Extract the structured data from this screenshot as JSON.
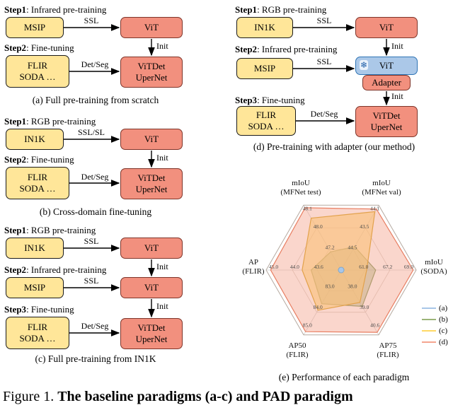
{
  "figure_caption": {
    "prefix": "Figure 1.",
    "title": "The baseline paradigms (a-c) and PAD paradigm"
  },
  "panel_a": {
    "step1_bold": "Step1",
    "step1_rest": ": Infrared pre-training",
    "step2_bold": "Step2",
    "step2_rest": ": Fine-tuning",
    "msip": "MSIP",
    "vit": "ViT",
    "data_line1": "FLIR",
    "data_line2": "SODA …",
    "head_line1": "ViTDet",
    "head_line2": "UperNet",
    "ssl": "SSL",
    "detseg": "Det/Seg",
    "init": "Init",
    "caption": "(a) Full pre-training from scratch"
  },
  "panel_b": {
    "step1_bold": "Step1",
    "step1_rest": ": RGB pre-training",
    "step2_bold": "Step2",
    "step2_rest": ": Fine-tuning",
    "in1k": "IN1K",
    "vit": "ViT",
    "data_line1": "FLIR",
    "data_line2": "SODA …",
    "head_line1": "ViTDet",
    "head_line2": "UperNet",
    "ssl": "SSL/SL",
    "detseg": "Det/Seg",
    "init": "Init",
    "caption": "(b) Cross-domain fine-tuning"
  },
  "panel_c": {
    "step1_bold": "Step1",
    "step1_rest": ": RGB pre-training",
    "step2_bold": "Step2",
    "step2_rest": ": Infrared pre-training",
    "step3_bold": "Step3",
    "step3_rest": ": Fine-tuning",
    "in1k": "IN1K",
    "vit1": "ViT",
    "msip": "MSIP",
    "vit2": "ViT",
    "data_line1": "FLIR",
    "data_line2": "SODA …",
    "head_line1": "ViTDet",
    "head_line2": "UperNet",
    "ssl1": "SSL",
    "ssl2": "SSL",
    "detseg": "Det/Seg",
    "init1": "Init",
    "init2": "Init",
    "caption": "(c) Full pre-training from IN1K"
  },
  "panel_d": {
    "step1_bold": "Step1",
    "step1_rest": ": RGB pre-training",
    "step2_bold": "Step2",
    "step2_rest": ": Infrared pre-training",
    "step3_bold": "Step3",
    "step3_rest": ": Fine-tuning",
    "in1k": "IN1K",
    "vit": "ViT",
    "msip": "MSIP",
    "frozen_vit": "ViT",
    "snowflake": "❄",
    "adapter": "Adapter",
    "data_line1": "FLIR",
    "data_line2": "SODA …",
    "head_line1": "ViTDet",
    "head_line2": "UperNet",
    "ssl1": "SSL",
    "ssl2": "SSL",
    "detseg": "Det/Seg",
    "init1": "Init",
    "init2": "Init",
    "caption": "(d) Pre-training with adapter (our method)"
  },
  "panel_e": {
    "caption": "(e) Performance of each paradigm"
  },
  "chart_data": {
    "type": "radar",
    "title": "Performance of each paradigm",
    "grid": true,
    "rings": [
      0.32,
      0.65,
      1.0
    ],
    "axes": [
      {
        "label": [
          "mIoU",
          "(MFNet test)"
        ],
        "ticks": [
          {
            "value": "47.2",
            "f": 0.3
          },
          {
            "value": "48.0",
            "f": 0.62
          },
          {
            "value": "48.1",
            "f": 0.9
          }
        ]
      },
      {
        "label": [
          "mIoU",
          "(MFNet val)"
        ],
        "ticks": [
          {
            "value": "44.5",
            "f": 0.3
          },
          {
            "value": "43.5",
            "f": 0.62
          },
          {
            "value": "44.1",
            "f": 0.9
          }
        ]
      },
      {
        "label": [
          "mIoU",
          "(SODA)"
        ],
        "ticks": [
          {
            "value": "61.0",
            "f": 0.3
          },
          {
            "value": "67.2",
            "f": 0.62
          },
          {
            "value": "69.0",
            "f": 0.9
          }
        ]
      },
      {
        "label": [
          "AP75",
          "(FLIR)"
        ],
        "ticks": [
          {
            "value": "38.0",
            "f": 0.3
          },
          {
            "value": "39.0",
            "f": 0.62
          },
          {
            "value": "40.6",
            "f": 0.9
          }
        ]
      },
      {
        "label": [
          "AP50",
          "(FLIR)"
        ],
        "ticks": [
          {
            "value": "83.0",
            "f": 0.3
          },
          {
            "value": "84.0",
            "f": 0.62
          },
          {
            "value": "85.0",
            "f": 0.9
          }
        ]
      },
      {
        "label": [
          "AP",
          "(FLIR)"
        ],
        "ticks": [
          {
            "value": "43.6",
            "f": 0.3
          },
          {
            "value": "44.0",
            "f": 0.62
          },
          {
            "value": "45.0",
            "f": 0.9
          }
        ]
      }
    ],
    "series": [
      {
        "name": "(a)",
        "color": "#a8c6e8",
        "stroke": "#7da7cc",
        "opacity": 0.9,
        "values_f": [
          0.035,
          0.035,
          0.035,
          0.035,
          0.035,
          0.035
        ]
      },
      {
        "name": "(b)",
        "color": "#9cb478",
        "stroke": "#7a9455",
        "opacity": 0.5,
        "values_f": [
          0.28,
          0.36,
          0.46,
          0.56,
          0.52,
          0.4
        ]
      },
      {
        "name": "(c)",
        "color": "#ffd966",
        "stroke": "#d4a017",
        "opacity": 0.6,
        "values_f": [
          0.8,
          0.9,
          0.34,
          0.5,
          0.62,
          0.52
        ]
      },
      {
        "name": "(d)",
        "color": "#f5a58f",
        "stroke": "#e87d60",
        "opacity": 0.45,
        "values_f": [
          0.96,
          0.94,
          0.96,
          0.96,
          0.95,
          0.94
        ]
      }
    ],
    "legend_position": "right"
  }
}
